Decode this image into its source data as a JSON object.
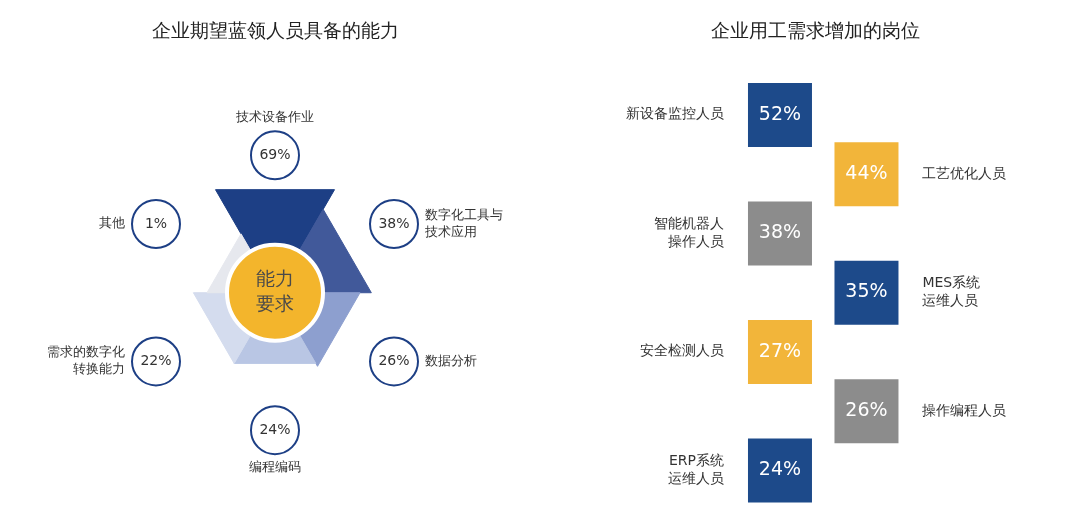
{
  "chart_data": [
    {
      "type": "other",
      "title": "企业期望蓝领人员具备的能力",
      "categories": [
        "技术设备作业",
        "数字化工具与技术应用",
        "数据分析",
        "编程编码",
        "需求的数字化转换能力",
        "其他"
      ],
      "values": [
        69,
        38,
        26,
        24,
        22,
        1
      ],
      "value_labels": [
        "69%",
        "38%",
        "26%",
        "24%",
        "22%",
        "1%"
      ],
      "colors": [
        "#1d3f85",
        "#1d3f85",
        "#1d3f85",
        "#1d3f85",
        "#1d3f85",
        "#1d3f85"
      ],
      "annotations": [
        "能力要求"
      ]
    },
    {
      "type": "other",
      "title": "企业用工需求增加的岗位",
      "categories": [
        "新设备监控人员",
        "工艺优化人员",
        "智能机器人操作人员",
        "MES系统运维人员",
        "安全检测人员",
        "操作编程人员",
        "ERP系统运维人员"
      ],
      "values": [
        52,
        44,
        38,
        35,
        27,
        26,
        24
      ],
      "value_labels": [
        "52%",
        "44%",
        "38%",
        "35%",
        "27%",
        "26%",
        "24%"
      ],
      "colors": [
        "#1d4a8a",
        "#f2b53a",
        "#8c8c8c",
        "#1d4a8a",
        "#f2b53a",
        "#8c8c8c",
        "#1d4a8a"
      ]
    }
  ]
}
